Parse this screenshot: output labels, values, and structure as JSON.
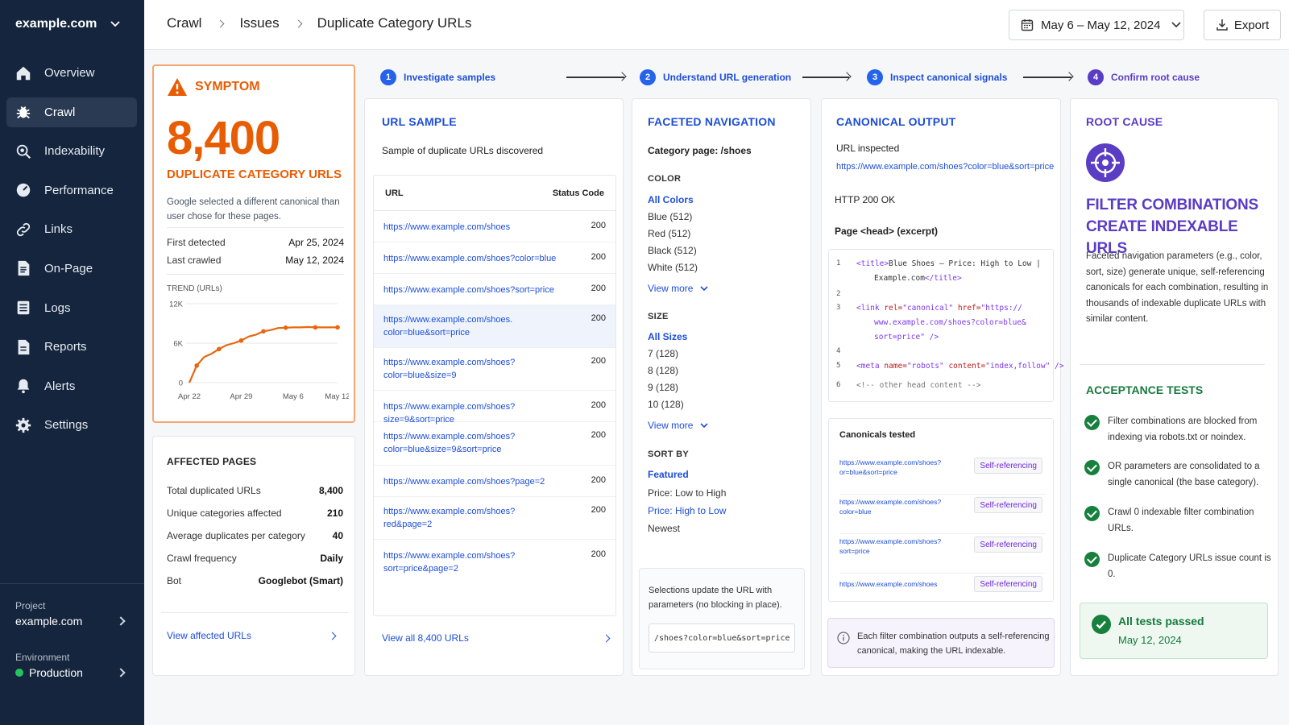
{
  "sidebar": {
    "site": "example.com",
    "items": [
      {
        "label": "Overview",
        "icon": "home-icon"
      },
      {
        "label": "Crawl",
        "icon": "bug-icon"
      },
      {
        "label": "Indexability",
        "icon": "search-icon"
      },
      {
        "label": "Performance",
        "icon": "gauge-icon"
      },
      {
        "label": "Links",
        "icon": "link-icon"
      },
      {
        "label": "On-Page",
        "icon": "document-icon"
      },
      {
        "label": "Logs",
        "icon": "list-icon"
      },
      {
        "label": "Reports",
        "icon": "report-icon"
      },
      {
        "label": "Alerts",
        "icon": "bell-icon"
      },
      {
        "label": "Settings",
        "icon": "gear-icon"
      }
    ],
    "active": "Crawl",
    "project_label": "Project",
    "project_value": "example.com",
    "environment_label": "Environment",
    "environment_value": "Production",
    "environment_color": "#22c55e"
  },
  "header": {
    "breadcrumb": [
      "Crawl",
      "Issues",
      "Duplicate Category URLs"
    ],
    "date_range": "May 6 – May 12, 2024",
    "export_label": "Export"
  },
  "steps": [
    {
      "num": "1",
      "label": "Investigate samples"
    },
    {
      "num": "2",
      "label": "Understand URL generation"
    },
    {
      "num": "3",
      "label": "Inspect canonical signals"
    },
    {
      "num": "4",
      "label": "Confirm root cause"
    }
  ],
  "symptom": {
    "label": "SYMPTOM",
    "count": "8,400",
    "title": "DUPLICATE CATEGORY URLS",
    "description": "Google selected a different canonical than user chose for these pages.",
    "first_detected_label": "First detected",
    "first_detected": "Apr 25, 2024",
    "last_crawled_label": "Last crawled",
    "last_crawled": "May 12, 2024",
    "trend_label": "TREND (URLs)"
  },
  "chart_data": {
    "type": "line",
    "title": "TREND (URLs)",
    "x": [
      "Apr 22",
      "Apr 23",
      "Apr 24",
      "Apr 25",
      "Apr 26",
      "Apr 27",
      "Apr 28",
      "Apr 29",
      "Apr 30",
      "May 1",
      "May 2",
      "May 3",
      "May 4",
      "May 5",
      "May 6",
      "May 7",
      "May 8",
      "May 9",
      "May 10",
      "May 11",
      "May 12"
    ],
    "x_ticks": [
      "Apr 22",
      "Apr 29",
      "May 6",
      "May 12"
    ],
    "y_ticks": [
      "0",
      "6K",
      "12K"
    ],
    "ylim": [
      0,
      12000
    ],
    "values": [
      0,
      2600,
      3900,
      4400,
      5100,
      5700,
      6000,
      6400,
      7000,
      7300,
      7800,
      8000,
      8300,
      8350,
      8400,
      8400,
      8450,
      8400,
      8400,
      8400,
      8400
    ],
    "markers_at": [
      1,
      4,
      7,
      10,
      13,
      17,
      20
    ],
    "color": "#e8660f",
    "grid": true
  },
  "affected": {
    "title": "AFFECTED PAGES",
    "rows": [
      {
        "label": "Total duplicated URLs",
        "value": "8,400"
      },
      {
        "label": "Unique categories affected",
        "value": "210"
      },
      {
        "label": "Average duplicates per category",
        "value": "40"
      },
      {
        "label": "Crawl frequency",
        "value": "Daily"
      },
      {
        "label": "Bot",
        "value": "Googlebot (Smart)"
      }
    ],
    "link": "View affected URLs"
  },
  "url_sample": {
    "title": "URL SAMPLE",
    "subtitle": "Sample of duplicate URLs discovered",
    "col_url": "URL",
    "col_status": "Status Code",
    "rows": [
      {
        "url": "https://www.example.com/shoes",
        "status": "200"
      },
      {
        "url": "https://www.example.com/shoes?color=blue",
        "status": "200"
      },
      {
        "url": "https://www.example.com/shoes?sort=price",
        "status": "200"
      },
      {
        "url": "https://www.example.com/shoes. color=blue&sort=price",
        "status": "200"
      },
      {
        "url": "https://www.example.com/shoes? color=blue&size=9",
        "status": "200"
      },
      {
        "url": "https://www.example.com/shoes?size=9&sort=price",
        "status": "200"
      },
      {
        "url": "https://www.example.com/shoes? color=blue&size=9&sort=price",
        "status": "200"
      },
      {
        "url": "https://www.example.com/shoes?page=2",
        "status": "200"
      },
      {
        "url": "https://www.example.com/shoes? red&page=2",
        "status": "200"
      },
      {
        "url": "https://www.example.com/shoes?sort=price&page=2",
        "status": "200"
      }
    ],
    "link": "View all 8,400 URLs"
  },
  "faceted": {
    "title": "FACETED NAVIGATION",
    "category": "Category page: /shoes",
    "color_label": "COLOR",
    "colors": [
      "All Colors",
      "Blue (512)",
      "Red (512)",
      "Black (512)",
      "White (512)"
    ],
    "view_more": "View more",
    "size_label": "SIZE",
    "sizes": [
      "All Sizes",
      "7 (128)",
      "8 (128)",
      "9 (128)",
      "10 (128)"
    ],
    "sort_label": "SORT BY",
    "sorts": [
      "Featured",
      "Price: Low to High",
      "Price: High to Low",
      "Newest"
    ],
    "note": "Selections update the URL with parameters (no blocking in place).",
    "note_code": "/shoes?color=blue&sort=price"
  },
  "canonical": {
    "title": "CANONICAL OUTPUT",
    "url_inspected_label": "URL inspected",
    "url_inspected": "https://www.example.com/shoes?color=blue&sort=price",
    "http_status": "HTTP 200 OK",
    "head_label": "Page <head> (excerpt)",
    "code_title": "Blue Shoes – Price: High to Low |",
    "code_title_2": "Example.com",
    "code_href_1": "https://",
    "code_href_2": "www.example.com/shoes?color=blue&",
    "code_href_3": "sort=price",
    "code_meta": "index,follow",
    "code_comment": "<!-- other head content -->",
    "tested_label": "Canonicals tested",
    "tested": [
      {
        "url": "https://www.example.com/shoes? or=blue&sort=price",
        "badge": "Self-referencing"
      },
      {
        "url": "https://www.example.com/shoes? color=blue",
        "badge": "Self-referencing"
      },
      {
        "url": "https://www.example.com/shoes? sort=price",
        "badge": "Self-referencing"
      },
      {
        "url": "https://www.example.com/shoes",
        "badge": "Self-referencing"
      }
    ],
    "info": "Each filter combination outputs a self-referencing canonical, making the URL indexable."
  },
  "root_cause": {
    "title": "ROOT CAUSE",
    "headline_1": "FILTER COMBINATIONS",
    "headline_2": "CREATE INDEXABLE URLS",
    "description": "Faceted navigation parameters (e.g., color, sort, size) generate unique, self-referencing canonicals for each combination, resulting in thousands of indexable duplicate URLs with similar content.",
    "acceptance_title": "ACCEPTANCE TESTS",
    "tests": [
      "Filter combinations are blocked from indexing via robots.txt or noindex.",
      "OR parameters are consolidated to a single canonical (the base category).",
      "Crawl 0 indexable filter combination URLs.",
      "Duplicate Category URLs issue count is 0."
    ],
    "passed_label": "All tests passed",
    "passed_date": "May 12, 2024"
  }
}
